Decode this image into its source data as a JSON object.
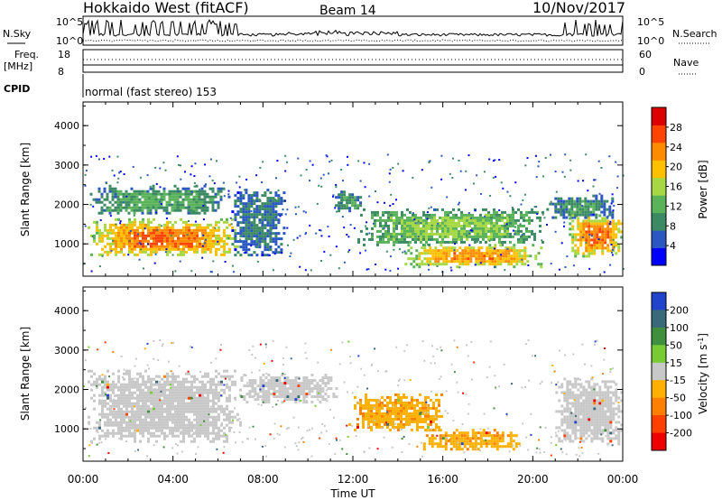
{
  "header": {
    "station": "Hokkaido West (fitACF)",
    "beam": "Beam 14",
    "date": "10/Nov/2017"
  },
  "noise_panel": {
    "left_label": "N.Sky",
    "right_label": "N.Search",
    "left_ticks": [
      "10^5",
      "10^0"
    ],
    "right_ticks": [
      "10^5",
      "10^0"
    ]
  },
  "freq_panel": {
    "left_label_1": "Freq.",
    "left_label_2": "[MHz]",
    "right_label": "Nave",
    "left_ticks": [
      "18",
      "8"
    ],
    "right_ticks": [
      "60",
      "0"
    ]
  },
  "cpid_panel": {
    "label": "CPID",
    "mode_text": "normal (fast stereo) 153"
  },
  "x_axis": {
    "label": "Time UT",
    "ticks": [
      "00:00",
      "04:00",
      "08:00",
      "12:00",
      "16:00",
      "20:00",
      "00:00"
    ]
  },
  "chart_data": [
    {
      "type": "heatmap",
      "parameter": "Power",
      "ylabel": "Slant Range [km]",
      "yticks": [
        "1000",
        "2000",
        "3000",
        "4000"
      ],
      "ylim": [
        180,
        4600
      ],
      "xlim_hours": [
        0,
        24
      ],
      "colorbar": {
        "label": "Power [dB]",
        "ticks": [
          "4",
          "8",
          "12",
          "16",
          "20",
          "24",
          "28"
        ],
        "range": [
          0,
          32
        ],
        "colors": [
          "#0000ff",
          "#2b57c2",
          "#3c8a63",
          "#5ab35a",
          "#a6d844",
          "#ffc000",
          "#ff8c00",
          "#ff4400",
          "#dd0000"
        ]
      },
      "regions": [
        {
          "t": [
            0.2,
            6.9
          ],
          "r": [
            700,
            1650
          ],
          "level": 26
        },
        {
          "t": [
            0.3,
            6.5
          ],
          "r": [
            1750,
            2500
          ],
          "level": 11
        },
        {
          "t": [
            6.6,
            8.9
          ],
          "r": [
            700,
            2400
          ],
          "level": 7
        },
        {
          "t": [
            11.2,
            12.3
          ],
          "r": [
            1850,
            2350
          ],
          "level": 11
        },
        {
          "t": [
            12.2,
            20.4
          ],
          "r": [
            1000,
            1900
          ],
          "level": 15
        },
        {
          "t": [
            14.3,
            20.4
          ],
          "r": [
            450,
            1000
          ],
          "level": 24
        },
        {
          "t": [
            20.6,
            23.6
          ],
          "r": [
            1650,
            2250
          ],
          "level": 9
        },
        {
          "t": [
            21.6,
            24.0
          ],
          "r": [
            700,
            1750
          ],
          "level": 26
        }
      ]
    },
    {
      "type": "heatmap",
      "parameter": "Velocity",
      "ylabel": "Slant Range [km]",
      "yticks": [
        "1000",
        "2000",
        "3000",
        "4000"
      ],
      "ylim": [
        180,
        4600
      ],
      "xlim_hours": [
        0,
        24
      ],
      "colorbar": {
        "label": "Velocity [m s^-1]",
        "ticks": [
          "200",
          "100",
          "50",
          "15",
          "-15",
          "-50",
          "-100",
          "-200"
        ],
        "colors": [
          "#2244cc",
          "#3a6a7a",
          "#3f8f3f",
          "#77cc33",
          "#c8c8c8",
          "#ffb000",
          "#ff8000",
          "#ff4000",
          "#ee0000"
        ]
      },
      "regions": [
        {
          "t": [
            0.2,
            7.0
          ],
          "r": [
            650,
            2500
          ],
          "velocity": 0
        },
        {
          "t": [
            7.0,
            11.3
          ],
          "r": [
            1700,
            2400
          ],
          "velocity": 0
        },
        {
          "t": [
            11.8,
            16.0
          ],
          "r": [
            1000,
            1900
          ],
          "velocity": -40
        },
        {
          "t": [
            15.0,
            19.5
          ],
          "r": [
            500,
            1000
          ],
          "velocity": -40
        },
        {
          "t": [
            21.0,
            24.0
          ],
          "r": [
            650,
            2300
          ],
          "velocity": 0
        }
      ]
    }
  ]
}
